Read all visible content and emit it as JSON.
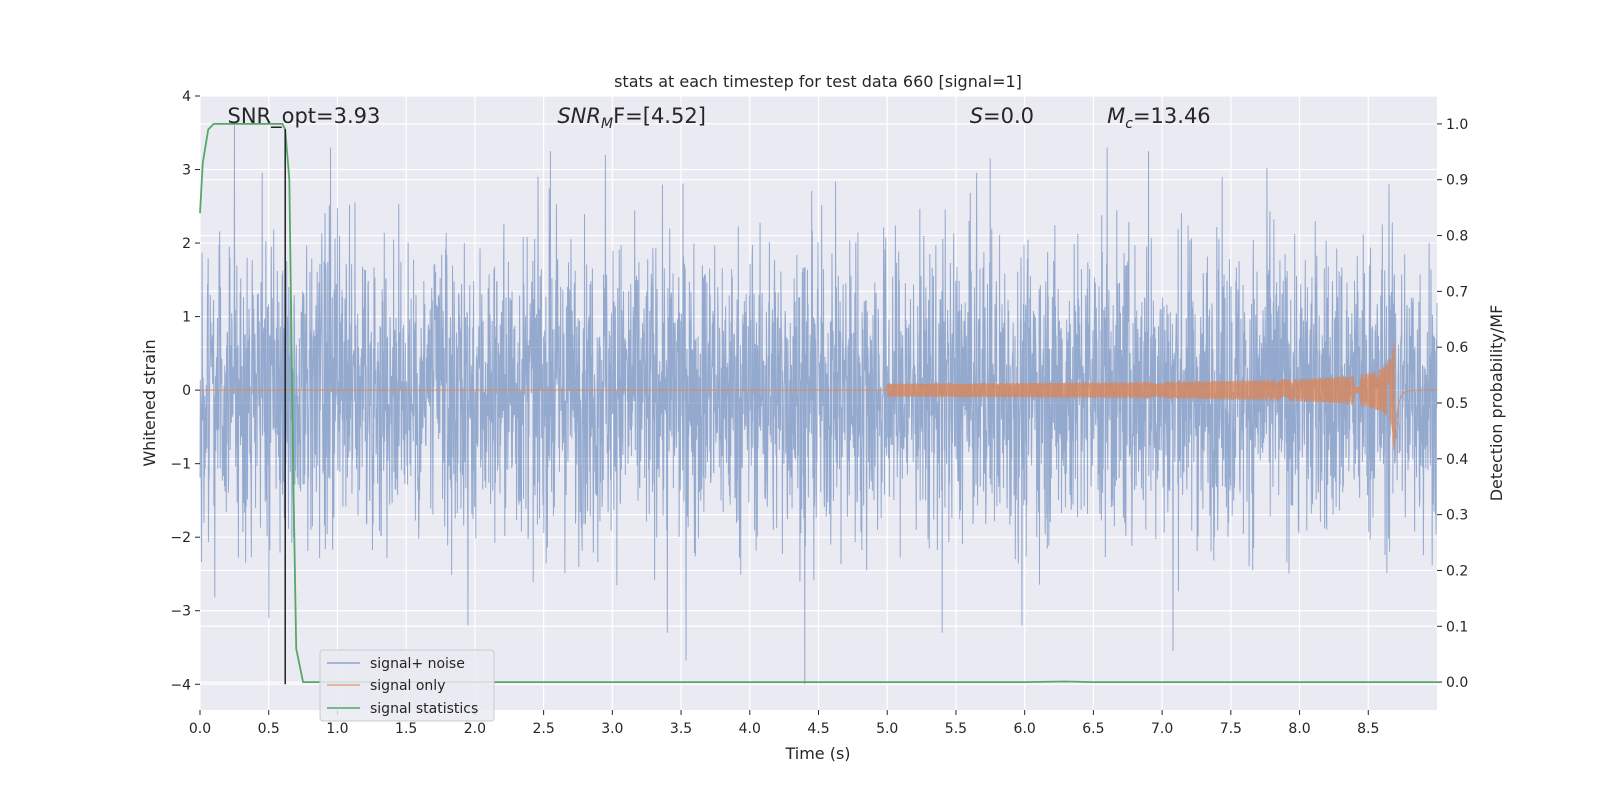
{
  "chart_data": {
    "type": "line",
    "title": "stats at each timestep for test data 660 [signal=1]",
    "xlabel": "Time (s)",
    "ylabel_left": "Whitened strain",
    "ylabel_right": "Detection probability/MF",
    "xlim": [
      0.0,
      9.0
    ],
    "ylim_left": [
      -4.35,
      4.0
    ],
    "ylim_right": [
      -0.05,
      1.05
    ],
    "x_ticks": [
      "0.0",
      "0.5",
      "1.0",
      "1.5",
      "2.0",
      "2.5",
      "3.0",
      "3.5",
      "4.0",
      "4.5",
      "5.0",
      "5.5",
      "6.0",
      "6.5",
      "7.0",
      "7.5",
      "8.0",
      "8.5"
    ],
    "y_left_ticks": [
      "4",
      "3",
      "2",
      "1",
      "0",
      "−1",
      "−2",
      "−3",
      "−4"
    ],
    "y_right_ticks": [
      "1.0",
      "0.9",
      "0.8",
      "0.7",
      "0.6",
      "0.5",
      "0.4",
      "0.3",
      "0.2",
      "0.1",
      "0.0"
    ],
    "grid": true,
    "legend_position": "lower-left",
    "annotations": [
      {
        "prefix": "SNR_opt=3.93",
        "sym": "",
        "sub": "",
        "suffix": "",
        "x": 0.2
      },
      {
        "prefix": "",
        "sym": "SNR",
        "sub": "M",
        "suffix": "F=[4.52]",
        "x": 2.6
      },
      {
        "prefix": "",
        "sym": "S",
        "sub": "",
        "suffix": "=0.0",
        "x": 5.6
      },
      {
        "prefix": "",
        "sym": "M",
        "sub": "c",
        "suffix": "=13.46",
        "x": 6.6
      }
    ],
    "annotation_y": 3.73,
    "vertical_marker": {
      "x": 0.62,
      "y_range": [
        -4.0,
        3.55
      ]
    },
    "series": [
      {
        "name": "signal+ noise",
        "color": "#4c72b0",
        "axis": "left",
        "kind": "noise",
        "amplitude_envelope": 2.3,
        "samples": 4096,
        "spikes": [
          {
            "x": 0.25,
            "y": 3.6
          },
          {
            "x": 0.95,
            "y": 3.3
          },
          {
            "x": 2.55,
            "y": 3.25
          },
          {
            "x": 2.95,
            "y": 3.2
          },
          {
            "x": 5.75,
            "y": 3.15
          },
          {
            "x": 6.6,
            "y": 3.3
          },
          {
            "x": 6.9,
            "y": 3.25
          },
          {
            "x": 8.65,
            "y": 2.8
          },
          {
            "x": 0.5,
            "y": -3.1
          },
          {
            "x": 1.95,
            "y": -3.2
          },
          {
            "x": 3.4,
            "y": -3.3
          },
          {
            "x": 4.4,
            "y": -4.0
          },
          {
            "x": 5.4,
            "y": -3.3
          },
          {
            "x": 5.98,
            "y": -3.2
          },
          {
            "x": 7.08,
            "y": -3.55
          }
        ]
      },
      {
        "name": "signal only",
        "color": "#dd8452",
        "axis": "left",
        "kind": "chirp",
        "start_x": 5.0,
        "peak_x": 8.69,
        "peak_amplitude": 0.85,
        "end_x": 8.85
      },
      {
        "name": "signal statistics",
        "color": "#55a868",
        "axis": "right",
        "kind": "line",
        "x": [
          0.0,
          0.02,
          0.06,
          0.1,
          0.2,
          0.5,
          0.6,
          0.62,
          0.65,
          0.68,
          0.7,
          0.75,
          1.0,
          2.0,
          4.0,
          6.0,
          6.3,
          6.5,
          8.0,
          9.0
        ],
        "y": [
          0.84,
          0.93,
          0.99,
          1.0,
          1.0,
          1.0,
          1.0,
          0.99,
          0.9,
          0.35,
          0.06,
          0.0,
          0.0,
          0.0,
          0.0,
          0.0,
          0.001,
          0.0,
          0.0,
          0.0
        ]
      }
    ]
  }
}
